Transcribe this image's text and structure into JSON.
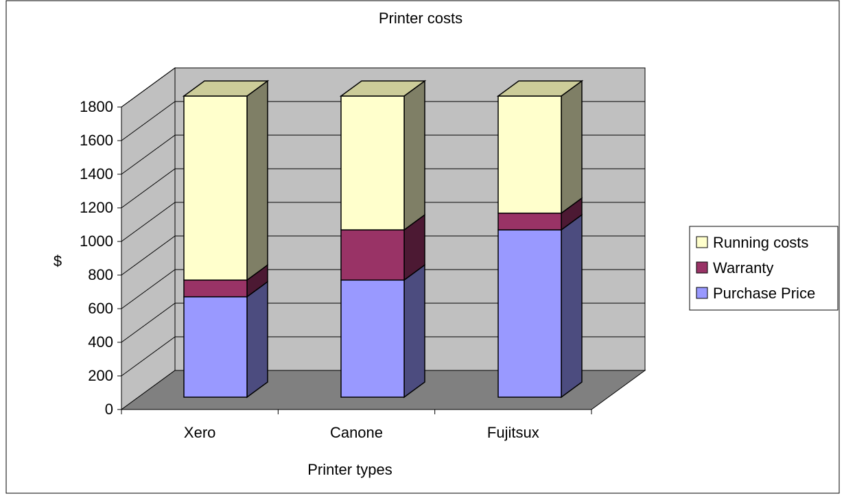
{
  "chart_data": {
    "type": "bar",
    "stacked": true,
    "three_d": true,
    "title": "Printer costs",
    "xlabel": "Printer types",
    "ylabel": "$",
    "categories": [
      "Xero",
      "Canone",
      "Fujitsux"
    ],
    "series": [
      {
        "name": "Purchase Price",
        "values": [
          600,
          700,
          1000
        ],
        "color": "#9999ff",
        "side_color": "#4c4c7f",
        "top_color": "#7777cc"
      },
      {
        "name": "Warranty",
        "values": [
          100,
          300,
          100
        ],
        "color": "#993366",
        "side_color": "#4c1933",
        "top_color": "#7a2952"
      },
      {
        "name": "Running costs",
        "values": [
          1100,
          800,
          700
        ],
        "color": "#ffffcc",
        "side_color": "#7f7f66",
        "top_color": "#cccc99"
      }
    ],
    "ylim": [
      0,
      1800
    ],
    "yticks": [
      "0",
      "200",
      "400",
      "600",
      "800",
      "1000",
      "1200",
      "1400",
      "1600",
      "1800"
    ],
    "grid": true,
    "legend_position": "right",
    "legend_order": [
      "Running costs",
      "Warranty",
      "Purchase Price"
    ],
    "colors": {
      "wall": "#c0c0c0",
      "side_wall": "#c0c0c0",
      "floor": "#808080",
      "grid": "#000000"
    }
  }
}
